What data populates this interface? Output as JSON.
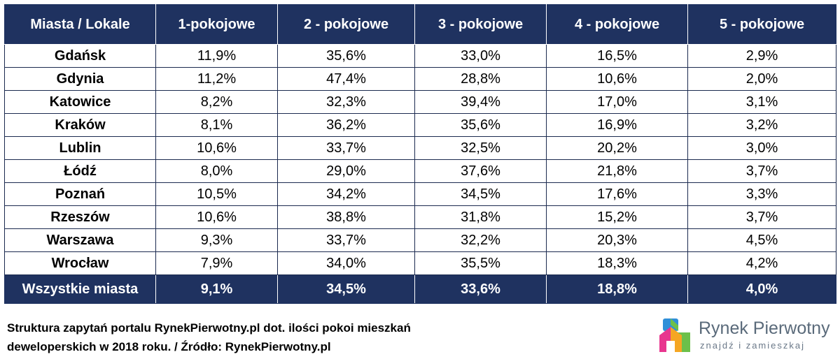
{
  "chart_data": {
    "type": "table",
    "columns": [
      "Miasta / Lokale",
      "1-pokojowe",
      "2 - pokojowe",
      "3 - pokojowe",
      "4 - pokojowe",
      "5 - pokojowe"
    ],
    "rows": [
      [
        "Gdańsk",
        "11,9%",
        "35,6%",
        "33,0%",
        "16,5%",
        "2,9%"
      ],
      [
        "Gdynia",
        "11,2%",
        "47,4%",
        "28,8%",
        "10,6%",
        "2,0%"
      ],
      [
        "Katowice",
        "8,2%",
        "32,3%",
        "39,4%",
        "17,0%",
        "3,1%"
      ],
      [
        "Kraków",
        "8,1%",
        "36,2%",
        "35,6%",
        "16,9%",
        "3,2%"
      ],
      [
        "Lublin",
        "10,6%",
        "33,7%",
        "32,5%",
        "20,2%",
        "3,0%"
      ],
      [
        "Łódź",
        "8,0%",
        "29,0%",
        "37,6%",
        "21,8%",
        "3,7%"
      ],
      [
        "Poznań",
        "10,5%",
        "34,2%",
        "34,5%",
        "17,6%",
        "3,3%"
      ],
      [
        "Rzeszów",
        "10,6%",
        "38,8%",
        "31,8%",
        "15,2%",
        "3,7%"
      ],
      [
        "Warszawa",
        "9,3%",
        "33,7%",
        "32,2%",
        "20,3%",
        "4,5%"
      ],
      [
        "Wrocław",
        "7,9%",
        "34,0%",
        "35,5%",
        "18,3%",
        "4,2%"
      ]
    ],
    "total_row": [
      "Wszystkie miasta",
      "9,1%",
      "34,5%",
      "33,6%",
      "18,8%",
      "4,0%"
    ]
  },
  "caption": {
    "line1": "Struktura zapytań portalu RynekPierwotny.pl dot. ilości pokoi mieszkań",
    "line2": "deweloperskich w 2018 roku. / Źródło: RynekPierwotny.pl"
  },
  "logo": {
    "name": "Rynek Pierwotny",
    "tagline": "znajdź i zamieszkaj"
  },
  "colors": {
    "header_bg": "#1f3260",
    "logo_blue": "#2f8fd8",
    "logo_green": "#6cc04a",
    "logo_pink": "#e8368f",
    "logo_orange": "#f5a623"
  }
}
